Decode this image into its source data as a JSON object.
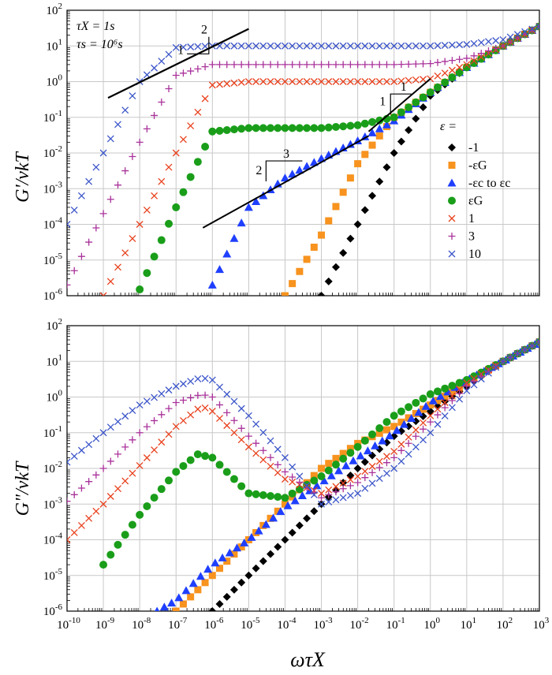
{
  "chart_data": [
    {
      "type": "scatter",
      "panel": "top",
      "ylabel": "G'/νkT",
      "xlabel": "",
      "xscale": "log",
      "yscale": "log",
      "xlim": [
        1e-10,
        1000
      ],
      "ylim": [
        1e-06,
        100
      ],
      "grid": true,
      "legend_title": "ε =",
      "legend_position": "right-middle",
      "annotations": {
        "params": [
          "τX = 1s",
          "τs = 10⁶s"
        ],
        "slope_labels": [
          "1",
          "2",
          "1",
          "1",
          "2",
          "3"
        ]
      },
      "series": [
        {
          "name": "-1",
          "color": "#000000",
          "marker": "diamond",
          "x": [
            0.001,
            0.01,
            0.1,
            1,
            10,
            100,
            1000
          ],
          "y": [
            1e-06,
            0.0001,
            0.01,
            0.4,
            2.5,
            10,
            35
          ]
        },
        {
          "name": "-εG",
          "color": "#f7931e",
          "marker": "square",
          "x": [
            0.0001,
            0.001,
            0.01,
            0.1,
            1,
            10,
            100,
            1000
          ],
          "y": [
            1e-06,
            5e-05,
            0.005,
            0.1,
            0.5,
            2.5,
            10,
            35
          ]
        },
        {
          "name": "-εc to εc",
          "color": "#1f3fff",
          "marker": "triangle",
          "x": [
            1e-06,
            1e-05,
            0.0001,
            0.001,
            0.01,
            0.1,
            1,
            10,
            100,
            1000
          ],
          "y": [
            2e-06,
            0.0003,
            0.002,
            0.007,
            0.022,
            0.08,
            0.5,
            2.5,
            10,
            35
          ]
        },
        {
          "name": "εG",
          "color": "#1a9e1a",
          "marker": "circle",
          "x": [
            1e-08,
            1e-07,
            1e-06,
            1e-05,
            0.0001,
            0.001,
            0.01,
            0.1,
            1,
            10,
            100,
            1000
          ],
          "y": [
            1.5e-06,
            0.0003,
            0.04,
            0.05,
            0.05,
            0.05,
            0.06,
            0.1,
            0.5,
            2.5,
            10,
            35
          ]
        },
        {
          "name": "1",
          "color": "#e8401c",
          "marker": "x",
          "x": [
            1e-09,
            1e-08,
            1e-07,
            1e-06,
            1e-05,
            0.0001,
            0.001,
            0.01,
            0.1,
            1,
            10,
            100,
            1000
          ],
          "y": [
            1e-06,
            0.0001,
            0.01,
            0.8,
            1,
            1,
            1,
            1,
            1,
            1.2,
            3,
            10,
            35
          ]
        },
        {
          "name": "3",
          "color": "#a9329a",
          "marker": "plus",
          "x": [
            1e-10,
            1e-09,
            1e-08,
            1e-07,
            1e-06,
            1e-05,
            0.0001,
            0.001,
            0.01,
            0.1,
            1,
            10,
            100,
            1000
          ],
          "y": [
            2e-06,
            0.0002,
            0.02,
            1.5,
            3,
            3,
            3,
            3,
            3,
            3,
            3.2,
            4.5,
            10,
            35
          ]
        },
        {
          "name": "10",
          "color": "#3b55c9",
          "marker": "x",
          "x": [
            1e-10,
            1e-09,
            1e-08,
            1e-07,
            1e-06,
            1e-05,
            0.0001,
            0.001,
            0.01,
            0.1,
            1,
            10,
            100,
            1000
          ],
          "y": [
            0.0001,
            0.01,
            1,
            9,
            10,
            10,
            10,
            10,
            10,
            10,
            10,
            11,
            15,
            35
          ]
        }
      ]
    },
    {
      "type": "scatter",
      "panel": "bottom",
      "ylabel": "G\"/νkT",
      "xlabel": "ωτX",
      "xscale": "log",
      "yscale": "log",
      "xlim": [
        1e-10,
        1000
      ],
      "ylim": [
        1e-06,
        100
      ],
      "grid": true,
      "x_tick_labels": [
        "10-10",
        "10-9",
        "10-8",
        "10-7",
        "10-6",
        "10-5",
        "10-4",
        "10-3",
        "10-2",
        "10-1",
        "100",
        "101",
        "102",
        "103"
      ],
      "y_tick_labels": [
        "10-6",
        "10-5",
        "10-4",
        "10-3",
        "10-2",
        "10-1",
        "100",
        "101",
        "102"
      ],
      "series": [
        {
          "name": "-1",
          "color": "#000000",
          "marker": "diamond",
          "x": [
            1e-06,
            1e-05,
            0.0001,
            0.001,
            0.01,
            0.1,
            1,
            10,
            100,
            1000
          ],
          "y": [
            1e-06,
            1e-05,
            0.0001,
            0.001,
            0.01,
            0.08,
            0.4,
            2,
            10,
            35
          ]
        },
        {
          "name": "-εG",
          "color": "#f7931e",
          "marker": "square",
          "x": [
            1e-07,
            1e-06,
            1e-05,
            0.0001,
            0.001,
            0.01,
            0.1,
            1,
            10,
            100,
            1000
          ],
          "y": [
            1e-06,
            1e-05,
            0.0001,
            0.001,
            0.01,
            0.05,
            0.15,
            0.6,
            2.5,
            10,
            35
          ]
        },
        {
          "name": "-εc to εc",
          "color": "#1f3fff",
          "marker": "triangle",
          "x": [
            3e-08,
            1e-07,
            1e-06,
            1e-05,
            0.0001,
            0.001,
            0.01,
            0.1,
            1,
            10,
            100,
            1000
          ],
          "y": [
            1e-06,
            2e-06,
            2e-05,
            0.0001,
            0.0008,
            0.004,
            0.02,
            0.1,
            0.7,
            3,
            10,
            35
          ]
        },
        {
          "name": "εG",
          "color": "#1a9e1a",
          "marker": "circle",
          "x": [
            1e-09,
            1e-08,
            1e-07,
            4e-07,
            1e-06,
            1e-05,
            0.0001,
            0.001,
            0.01,
            0.1,
            1,
            10,
            100,
            1000
          ],
          "y": [
            2e-05,
            0.0005,
            0.008,
            0.025,
            0.02,
            0.002,
            0.0015,
            0.006,
            0.04,
            0.3,
            1.2,
            3,
            10,
            35
          ]
        },
        {
          "name": "1",
          "color": "#e8401c",
          "marker": "x",
          "x": [
            1e-10,
            1e-09,
            1e-08,
            1e-07,
            5e-07,
            1e-06,
            1e-05,
            0.0001,
            0.001,
            0.01,
            0.1,
            1,
            10,
            100,
            1000
          ],
          "y": [
            0.0001,
            0.001,
            0.012,
            0.15,
            0.55,
            0.4,
            0.04,
            0.005,
            0.002,
            0.006,
            0.03,
            0.3,
            2.5,
            10,
            35
          ]
        },
        {
          "name": "3",
          "color": "#a9329a",
          "marker": "plus",
          "x": [
            1e-10,
            1e-09,
            1e-08,
            1e-07,
            5e-07,
            1e-06,
            1e-05,
            0.0001,
            0.001,
            0.01,
            0.1,
            1,
            10,
            100,
            1000
          ],
          "y": [
            0.0012,
            0.01,
            0.1,
            0.7,
            1.2,
            1,
            0.08,
            0.008,
            0.0015,
            0.004,
            0.02,
            0.2,
            2,
            10,
            35
          ]
        },
        {
          "name": "10",
          "color": "#3b55c9",
          "marker": "x",
          "x": [
            1e-10,
            1e-09,
            1e-08,
            1e-07,
            5e-07,
            1e-06,
            1e-05,
            0.0001,
            0.001,
            0.01,
            0.1,
            1,
            10,
            100,
            1000
          ],
          "y": [
            0.015,
            0.1,
            0.6,
            2,
            3.5,
            3,
            0.3,
            0.02,
            0.001,
            0.002,
            0.01,
            0.1,
            1.5,
            10,
            35
          ]
        }
      ]
    }
  ]
}
